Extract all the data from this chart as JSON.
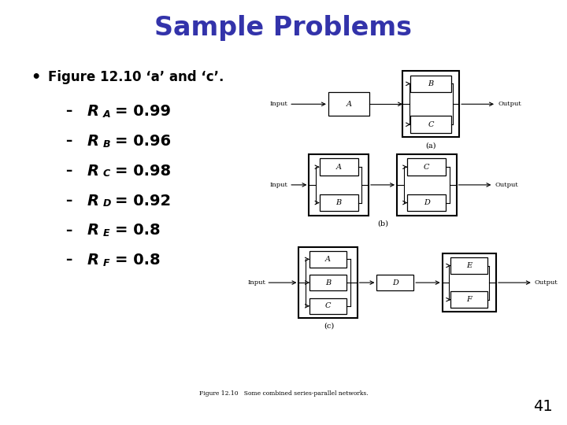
{
  "title": "Sample Problems",
  "title_color": "#3333AA",
  "title_fontsize": 24,
  "bg_color": "#FFFFFF",
  "bullet_text": "Figure 12.10 ‘a’ and ‘c’.",
  "items": [
    {
      "label": "R",
      "sub": "A",
      "value": "= 0.99"
    },
    {
      "label": "R",
      "sub": "B",
      "value": "= 0.96"
    },
    {
      "label": "R",
      "sub": "C",
      "value": "= 0.98"
    },
    {
      "label": "R",
      "sub": "D",
      "value": "= 0.92"
    },
    {
      "label": "R",
      "sub": "E",
      "value": "= 0.8"
    },
    {
      "label": "R",
      "sub": "F",
      "value": "= 0.8"
    }
  ],
  "page_number": "41",
  "caption": "Figure 12.10   Some combined series-parallel networks."
}
